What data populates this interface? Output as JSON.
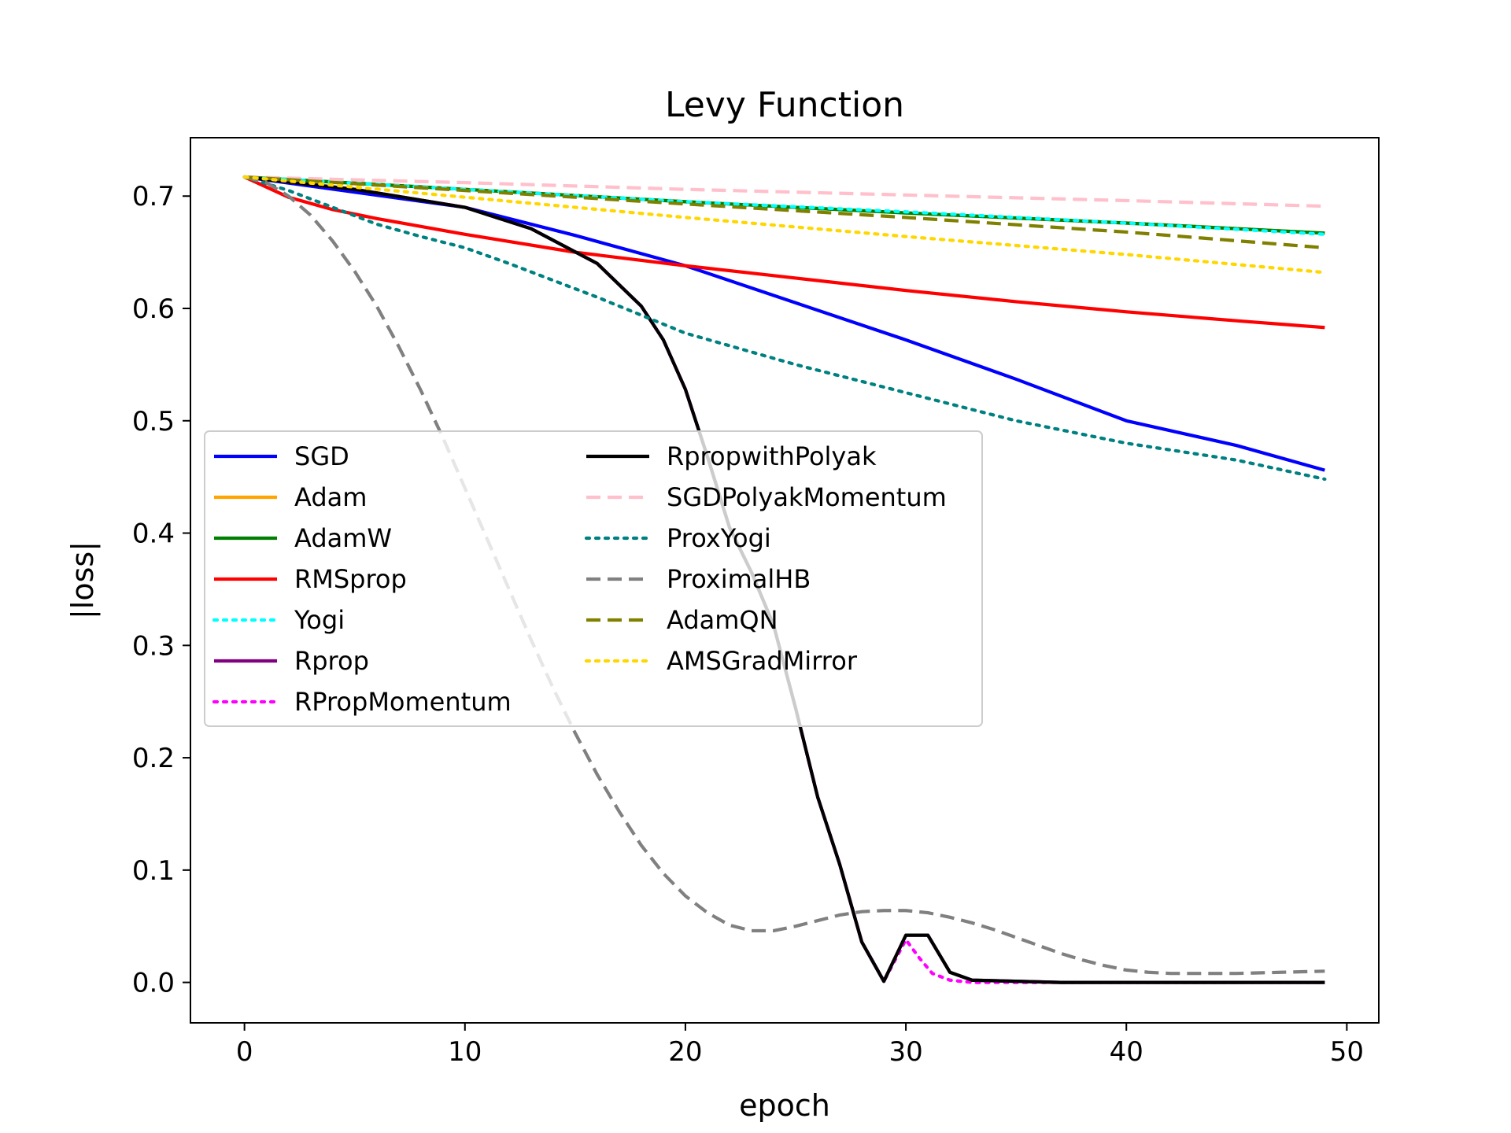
{
  "chart_data": {
    "type": "line",
    "title": "Levy Function",
    "xlabel": "epoch",
    "ylabel": "|loss|",
    "xlim": [
      -2.45,
      51.45
    ],
    "ylim": [
      -0.036,
      0.752
    ],
    "xticks": [
      0,
      10,
      20,
      30,
      40,
      50
    ],
    "yticks": [
      0.0,
      0.1,
      0.2,
      0.3,
      0.4,
      0.5,
      0.6,
      0.7
    ],
    "xtick_labels": [
      "0",
      "10",
      "20",
      "30",
      "40",
      "50"
    ],
    "ytick_labels": [
      "0.0",
      "0.1",
      "0.2",
      "0.3",
      "0.4",
      "0.5",
      "0.6",
      "0.7"
    ],
    "grid": false,
    "legend_placement": "center-left",
    "series": [
      {
        "name": "SGD",
        "color": "#0000ff",
        "style": "solid",
        "points": [
          [
            0,
            0.717
          ],
          [
            10,
            0.69
          ],
          [
            15,
            0.665
          ],
          [
            20,
            0.638
          ],
          [
            25,
            0.605
          ],
          [
            30,
            0.572
          ],
          [
            35,
            0.537
          ],
          [
            40,
            0.5
          ],
          [
            45,
            0.478
          ],
          [
            49,
            0.456
          ]
        ]
      },
      {
        "name": "Adam",
        "color": "#ffa500",
        "style": "solid",
        "points": [
          [
            0,
            0.717
          ],
          [
            10,
            0.706
          ],
          [
            20,
            0.695
          ],
          [
            30,
            0.685
          ],
          [
            40,
            0.676
          ],
          [
            49,
            0.667
          ]
        ]
      },
      {
        "name": "AdamW",
        "color": "#008000",
        "style": "solid",
        "points": [
          [
            0,
            0.717
          ],
          [
            10,
            0.706
          ],
          [
            20,
            0.695
          ],
          [
            30,
            0.685
          ],
          [
            40,
            0.676
          ],
          [
            49,
            0.667
          ]
        ]
      },
      {
        "name": "RMSprop",
        "color": "#ff0000",
        "style": "solid",
        "points": [
          [
            0,
            0.717
          ],
          [
            1,
            0.708
          ],
          [
            2,
            0.699
          ],
          [
            4,
            0.688
          ],
          [
            6,
            0.68
          ],
          [
            8,
            0.673
          ],
          [
            10,
            0.666
          ],
          [
            15,
            0.65
          ],
          [
            20,
            0.638
          ],
          [
            25,
            0.627
          ],
          [
            30,
            0.616
          ],
          [
            35,
            0.606
          ],
          [
            40,
            0.597
          ],
          [
            45,
            0.589
          ],
          [
            49,
            0.583
          ]
        ]
      },
      {
        "name": "Yogi",
        "color": "#00ffff",
        "style": "dotted",
        "points": [
          [
            0,
            0.717
          ],
          [
            10,
            0.706
          ],
          [
            20,
            0.695
          ],
          [
            30,
            0.686
          ],
          [
            40,
            0.676
          ],
          [
            49,
            0.666
          ]
        ]
      },
      {
        "name": "Rprop",
        "color": "#800080",
        "style": "solid",
        "points": [
          [
            0,
            0.717
          ],
          [
            5,
            0.706
          ],
          [
            10,
            0.69
          ],
          [
            13,
            0.671
          ],
          [
            16,
            0.64
          ],
          [
            18,
            0.602
          ],
          [
            19,
            0.572
          ],
          [
            20,
            0.528
          ],
          [
            21,
            0.468
          ],
          [
            22,
            0.405
          ],
          [
            23,
            0.365
          ],
          [
            24,
            0.318
          ],
          [
            25,
            0.244
          ],
          [
            26,
            0.165
          ],
          [
            27,
            0.105
          ],
          [
            28,
            0.036
          ],
          [
            29,
            0.001
          ],
          [
            30,
            0.042
          ],
          [
            31,
            0.042
          ],
          [
            32,
            0.009
          ],
          [
            33,
            0.002
          ],
          [
            37,
            0.0
          ],
          [
            49,
            0.0
          ]
        ]
      },
      {
        "name": "RPropMomentum",
        "color": "#ff00ff",
        "style": "dotted",
        "points": [
          [
            0,
            0.717
          ],
          [
            5,
            0.706
          ],
          [
            10,
            0.69
          ],
          [
            13,
            0.671
          ],
          [
            16,
            0.64
          ],
          [
            18,
            0.602
          ],
          [
            19,
            0.572
          ],
          [
            20,
            0.528
          ],
          [
            21,
            0.468
          ],
          [
            22,
            0.405
          ],
          [
            23,
            0.365
          ],
          [
            24,
            0.318
          ],
          [
            25,
            0.244
          ],
          [
            26,
            0.165
          ],
          [
            27,
            0.105
          ],
          [
            28,
            0.036
          ],
          [
            29,
            0.001
          ],
          [
            30,
            0.038
          ],
          [
            30.6,
            0.022
          ],
          [
            31.2,
            0.008
          ],
          [
            32,
            0.002
          ],
          [
            33,
            0.0
          ],
          [
            49,
            0.0
          ]
        ]
      },
      {
        "name": "RpropwithPolyak",
        "color": "#000000",
        "style": "solid",
        "points": [
          [
            0,
            0.717
          ],
          [
            5,
            0.706
          ],
          [
            10,
            0.69
          ],
          [
            13,
            0.671
          ],
          [
            16,
            0.64
          ],
          [
            18,
            0.602
          ],
          [
            19,
            0.572
          ],
          [
            20,
            0.528
          ],
          [
            21,
            0.468
          ],
          [
            22,
            0.405
          ],
          [
            23,
            0.365
          ],
          [
            24,
            0.318
          ],
          [
            25,
            0.244
          ],
          [
            26,
            0.165
          ],
          [
            27,
            0.105
          ],
          [
            28,
            0.036
          ],
          [
            29,
            0.001
          ],
          [
            30,
            0.042
          ],
          [
            31,
            0.042
          ],
          [
            32,
            0.009
          ],
          [
            33,
            0.002
          ],
          [
            37,
            0.0
          ],
          [
            49,
            0.0
          ]
        ]
      },
      {
        "name": "SGDPolyakMomentum",
        "color": "#ffc0cb",
        "style": "dashed",
        "points": [
          [
            0,
            0.717
          ],
          [
            10,
            0.712
          ],
          [
            20,
            0.706
          ],
          [
            30,
            0.701
          ],
          [
            40,
            0.696
          ],
          [
            49,
            0.691
          ]
        ]
      },
      {
        "name": "ProxYogi",
        "color": "#008080",
        "style": "dotted",
        "points": [
          [
            0,
            0.717
          ],
          [
            2,
            0.705
          ],
          [
            4,
            0.69
          ],
          [
            6,
            0.675
          ],
          [
            8,
            0.664
          ],
          [
            10,
            0.654
          ],
          [
            12,
            0.64
          ],
          [
            14,
            0.625
          ],
          [
            16,
            0.61
          ],
          [
            18,
            0.594
          ],
          [
            20,
            0.578
          ],
          [
            25,
            0.55
          ],
          [
            30,
            0.525
          ],
          [
            35,
            0.5
          ],
          [
            40,
            0.48
          ],
          [
            45,
            0.465
          ],
          [
            49,
            0.448
          ]
        ]
      },
      {
        "name": "ProximalHB",
        "color": "#808080",
        "style": "dashed",
        "points": [
          [
            0,
            0.717
          ],
          [
            1,
            0.712
          ],
          [
            2,
            0.7
          ],
          [
            3,
            0.683
          ],
          [
            4,
            0.66
          ],
          [
            5,
            0.633
          ],
          [
            6,
            0.602
          ],
          [
            7,
            0.566
          ],
          [
            8,
            0.527
          ],
          [
            9,
            0.485
          ],
          [
            10,
            0.44
          ],
          [
            11,
            0.395
          ],
          [
            12,
            0.35
          ],
          [
            13,
            0.305
          ],
          [
            14,
            0.262
          ],
          [
            15,
            0.222
          ],
          [
            16,
            0.185
          ],
          [
            17,
            0.152
          ],
          [
            18,
            0.122
          ],
          [
            19,
            0.097
          ],
          [
            20,
            0.077
          ],
          [
            21,
            0.062
          ],
          [
            22,
            0.051
          ],
          [
            23,
            0.046
          ],
          [
            24,
            0.046
          ],
          [
            25,
            0.05
          ],
          [
            26,
            0.055
          ],
          [
            27,
            0.06
          ],
          [
            28,
            0.063
          ],
          [
            29,
            0.064
          ],
          [
            30,
            0.064
          ],
          [
            31,
            0.062
          ],
          [
            32,
            0.058
          ],
          [
            33,
            0.053
          ],
          [
            34,
            0.047
          ],
          [
            35,
            0.04
          ],
          [
            36,
            0.033
          ],
          [
            37,
            0.026
          ],
          [
            38,
            0.02
          ],
          [
            39,
            0.015
          ],
          [
            40,
            0.011
          ],
          [
            41,
            0.009
          ],
          [
            42,
            0.008
          ],
          [
            43,
            0.008
          ],
          [
            45,
            0.008
          ],
          [
            47,
            0.009
          ],
          [
            49,
            0.01
          ]
        ]
      },
      {
        "name": "AdamQN",
        "color": "#808000",
        "style": "dashed",
        "points": [
          [
            0,
            0.717
          ],
          [
            10,
            0.705
          ],
          [
            20,
            0.693
          ],
          [
            30,
            0.681
          ],
          [
            40,
            0.668
          ],
          [
            49,
            0.654
          ]
        ]
      },
      {
        "name": "AMSGradMirror",
        "color": "#ffd700",
        "style": "dotted",
        "points": [
          [
            0,
            0.717
          ],
          [
            10,
            0.699
          ],
          [
            20,
            0.681
          ],
          [
            30,
            0.664
          ],
          [
            40,
            0.648
          ],
          [
            49,
            0.632
          ]
        ]
      }
    ]
  }
}
